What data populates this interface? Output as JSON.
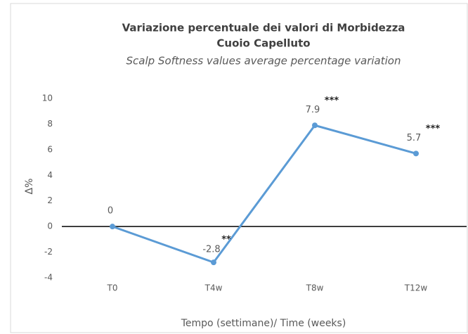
{
  "chart_data": {
    "type": "line",
    "title": [
      "Variazione percentuale dei valori di Morbidezza",
      "Cuoio Capelluto"
    ],
    "subtitle": "Scalp Softness values average percentage variation",
    "x_label": "Tempo (settimane)/ Time (weeks)",
    "y_label": "Δ%",
    "categories": [
      "T0",
      "T4w",
      "T8w",
      "T12w"
    ],
    "series": [
      {
        "name": "Softness",
        "color": "#5b9bd5",
        "values": [
          0,
          -2.8,
          7.9,
          5.7
        ]
      }
    ],
    "annotations": [
      {
        "category": "T4w",
        "text": "**"
      },
      {
        "category": "T8w",
        "text": "***"
      },
      {
        "category": "T12w",
        "text": "***"
      }
    ],
    "ylim": [
      -4,
      10
    ],
    "yticks": [
      -4,
      -2,
      0,
      2,
      4,
      6,
      8,
      10
    ],
    "grid": false
  }
}
